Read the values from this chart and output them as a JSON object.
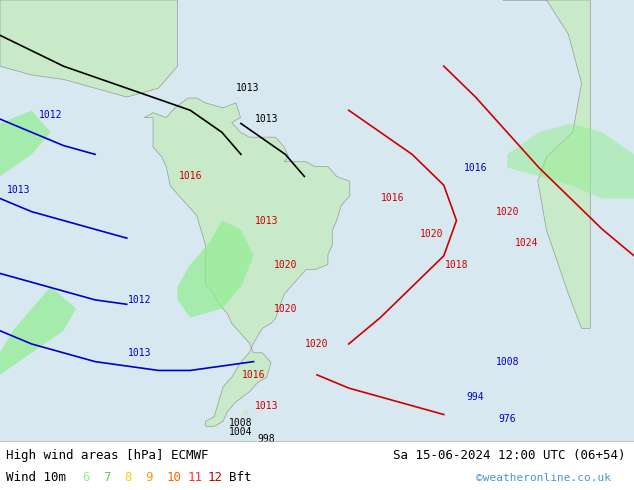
{
  "title_left": "High wind areas [hPa] ECMWF",
  "title_right": "Sa 15-06-2024 12:00 UTC (06+54)",
  "subtitle_left": "Wind 10m",
  "legend_nums": [
    "6",
    "7",
    "8",
    "9",
    "10",
    "11",
    "12"
  ],
  "legend_colors": [
    "#90ee90",
    "#66cc66",
    "#ffcc00",
    "#ff9900",
    "#ff6600",
    "#ff3333",
    "#cc0000"
  ],
  "copyright": "©weatheronline.co.uk",
  "bg_color": "#d8e8f0",
  "land_color": "#c8eac8",
  "figsize": [
    6.34,
    4.9
  ],
  "dpi": 100,
  "label_fontsize": 7,
  "label_fontfamily": "monospace"
}
